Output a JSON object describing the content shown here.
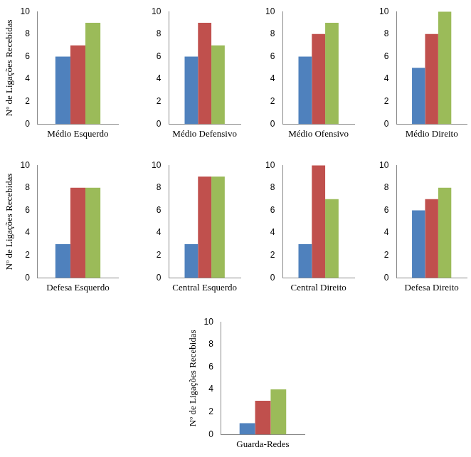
{
  "chart_data": [
    {
      "type": "bar",
      "categories": [
        "Médio Esquerdo"
      ],
      "y_label": "Nº de Ligações Recebidas",
      "ylim": [
        0,
        10
      ],
      "yticks": [
        0,
        2,
        4,
        6,
        8,
        10
      ],
      "grid": false,
      "series": [
        {
          "color": "#4f81bd",
          "values": [
            6
          ]
        },
        {
          "color": "#c0504d",
          "values": [
            7
          ]
        },
        {
          "color": "#9bbb59",
          "values": [
            9
          ]
        }
      ]
    },
    {
      "type": "bar",
      "categories": [
        "Médio Defensivo"
      ],
      "ylim": [
        0,
        10
      ],
      "yticks": [
        0,
        2,
        4,
        6,
        8,
        10
      ],
      "grid": false,
      "series": [
        {
          "color": "#4f81bd",
          "values": [
            6
          ]
        },
        {
          "color": "#c0504d",
          "values": [
            9
          ]
        },
        {
          "color": "#9bbb59",
          "values": [
            7
          ]
        }
      ]
    },
    {
      "type": "bar",
      "categories": [
        "Médio Ofensivo"
      ],
      "ylim": [
        0,
        10
      ],
      "yticks": [
        0,
        2,
        4,
        6,
        8,
        10
      ],
      "grid": false,
      "series": [
        {
          "color": "#4f81bd",
          "values": [
            6
          ]
        },
        {
          "color": "#c0504d",
          "values": [
            8
          ]
        },
        {
          "color": "#9bbb59",
          "values": [
            9
          ]
        }
      ]
    },
    {
      "type": "bar",
      "categories": [
        "Médio Direito"
      ],
      "ylim": [
        0,
        10
      ],
      "yticks": [
        0,
        2,
        4,
        6,
        8,
        10
      ],
      "grid": false,
      "series": [
        {
          "color": "#4f81bd",
          "values": [
            5
          ]
        },
        {
          "color": "#c0504d",
          "values": [
            8
          ]
        },
        {
          "color": "#9bbb59",
          "values": [
            10
          ]
        }
      ]
    },
    {
      "type": "bar",
      "categories": [
        "Defesa Esquerdo"
      ],
      "y_label": "Nº de Ligações Recebidas",
      "ylim": [
        0,
        10
      ],
      "yticks": [
        0,
        2,
        4,
        6,
        8,
        10
      ],
      "grid": false,
      "series": [
        {
          "color": "#4f81bd",
          "values": [
            3
          ]
        },
        {
          "color": "#c0504d",
          "values": [
            8
          ]
        },
        {
          "color": "#9bbb59",
          "values": [
            8
          ]
        }
      ]
    },
    {
      "type": "bar",
      "categories": [
        "Central Esquerdo"
      ],
      "ylim": [
        0,
        10
      ],
      "yticks": [
        0,
        2,
        4,
        6,
        8,
        10
      ],
      "grid": false,
      "series": [
        {
          "color": "#4f81bd",
          "values": [
            3
          ]
        },
        {
          "color": "#c0504d",
          "values": [
            9
          ]
        },
        {
          "color": "#9bbb59",
          "values": [
            9
          ]
        }
      ]
    },
    {
      "type": "bar",
      "categories": [
        "Central Direito"
      ],
      "ylim": [
        0,
        10
      ],
      "yticks": [
        0,
        2,
        4,
        6,
        8,
        10
      ],
      "grid": false,
      "series": [
        {
          "color": "#4f81bd",
          "values": [
            3
          ]
        },
        {
          "color": "#c0504d",
          "values": [
            10
          ]
        },
        {
          "color": "#9bbb59",
          "values": [
            7
          ]
        }
      ]
    },
    {
      "type": "bar",
      "categories": [
        "Defesa Direito"
      ],
      "ylim": [
        0,
        10
      ],
      "yticks": [
        0,
        2,
        4,
        6,
        8,
        10
      ],
      "grid": false,
      "series": [
        {
          "color": "#4f81bd",
          "values": [
            6
          ]
        },
        {
          "color": "#c0504d",
          "values": [
            7
          ]
        },
        {
          "color": "#9bbb59",
          "values": [
            8
          ]
        }
      ]
    },
    {
      "type": "bar",
      "categories": [
        "Guarda-Redes"
      ],
      "y_label": "Nº de Ligações Recebidas",
      "ylim": [
        0,
        10
      ],
      "yticks": [
        0,
        2,
        4,
        6,
        8,
        10
      ],
      "grid": false,
      "series": [
        {
          "color": "#4f81bd",
          "values": [
            1
          ]
        },
        {
          "color": "#c0504d",
          "values": [
            3
          ]
        },
        {
          "color": "#9bbb59",
          "values": [
            4
          ]
        }
      ]
    }
  ]
}
